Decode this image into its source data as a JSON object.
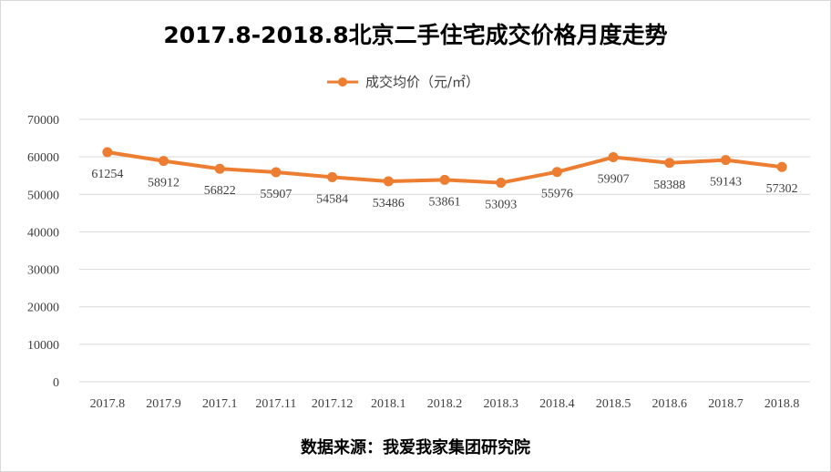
{
  "chart_data": {
    "type": "line",
    "title": "2017.8-2018.8北京二手住宅成交价格月度走势",
    "categories": [
      "2017.8",
      "2017.9",
      "2017.1",
      "2017.11",
      "2017.12",
      "2018.1",
      "2018.2",
      "2018.3",
      "2018.4",
      "2018.5",
      "2018.6",
      "2018.7",
      "2018.8"
    ],
    "series": [
      {
        "name": "成交均价（元/㎡）",
        "values": [
          61254,
          58912,
          56822,
          55907,
          54584,
          53486,
          53861,
          53093,
          55976,
          59907,
          58388,
          59143,
          57302
        ]
      }
    ],
    "ylim": [
      0,
      70000
    ],
    "yticks": [
      0,
      10000,
      20000,
      30000,
      40000,
      50000,
      60000,
      70000
    ],
    "xlabel": "",
    "ylabel": "",
    "grid": true,
    "legend": "top-center",
    "data_labels": "below",
    "colors": {
      "series": "#ed7d31",
      "grid": "#d9d9d9",
      "text": "#404040"
    },
    "source_note": "数据来源：我爱我家集团研究院"
  }
}
